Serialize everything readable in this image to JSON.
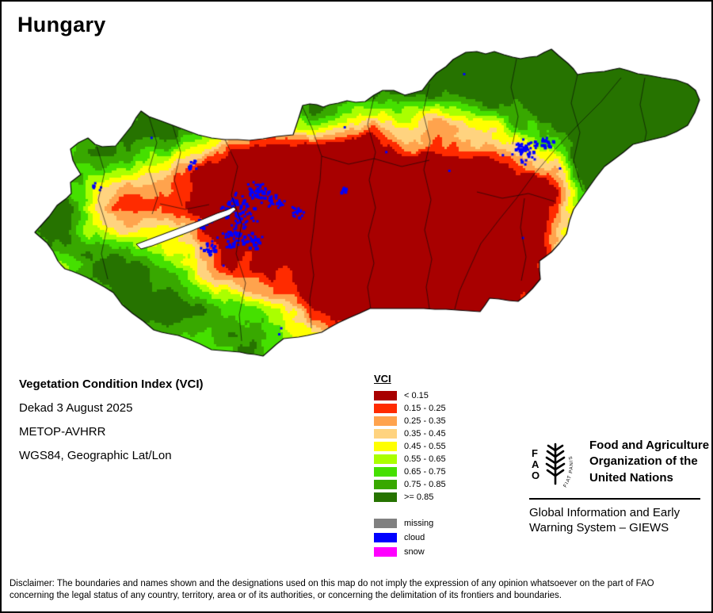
{
  "title": "Hungary",
  "info": {
    "product": "Vegetation Condition Index (VCI)",
    "dekad": "Dekad 3 August 2025",
    "sensor": "METOP-AVHRR",
    "projection": "WGS84, Geographic Lat/Lon"
  },
  "legend": {
    "title": "VCI",
    "classes": [
      {
        "label": "< 0.15",
        "color": "#a80000"
      },
      {
        "label": "0.15 - 0.25",
        "color": "#ff2b00"
      },
      {
        "label": "0.25 - 0.35",
        "color": "#ffa34d"
      },
      {
        "label": "0.35 - 0.45",
        "color": "#ffd37f"
      },
      {
        "label": "0.45 - 0.55",
        "color": "#ffff00"
      },
      {
        "label": "0.55 - 0.65",
        "color": "#aaff00"
      },
      {
        "label": "0.65 - 0.75",
        "color": "#45e000"
      },
      {
        "label": "0.75 - 0.85",
        "color": "#38a800"
      },
      {
        "label": ">= 0.85",
        "color": "#267300"
      }
    ],
    "extra_classes": [
      {
        "label": "missing",
        "color": "#808080"
      },
      {
        "label": "cloud",
        "color": "#0000ff"
      },
      {
        "label": "snow",
        "color": "#ff00ff"
      }
    ]
  },
  "footer": {
    "fao_letters": [
      "F",
      "A",
      "O"
    ],
    "fiat_panis": "FIAT PANIS",
    "fao_name": "Food and Agriculture Organization of the United Nations",
    "giews": "Global Information and Early Warning System – GIEWS"
  },
  "disclaimer": "Disclaimer: The boundaries and names shown and the designations used on this map do not imply the expression of any opinion whatsoever on the part of FAO concerning the legal status of any country, territory, area or of its authorities, or concerning the delimitation of its frontiers and boundaries.",
  "map": {
    "country": "Hungary",
    "lake": "Lake Balaton"
  }
}
